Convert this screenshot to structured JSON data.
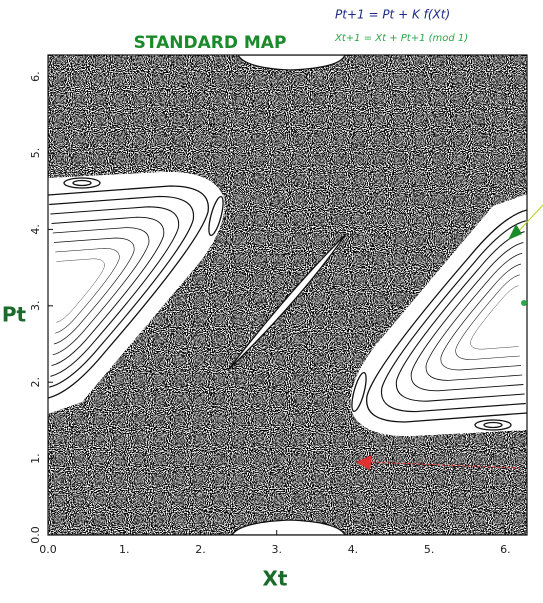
{
  "chart_data": {
    "type": "scatter",
    "title": "STANDARD MAP",
    "x_label": "Xt",
    "y_label": "Pt",
    "annotations": [
      "Pt+1 = Pt + K f(Xt)",
      "Xt+1 = Xt + Pt+1  (mod 1)"
    ],
    "xlim": [
      0,
      6.283
    ],
    "ylim": [
      0,
      6.283
    ],
    "xticks": [
      {
        "value": 0,
        "label": "0.0"
      },
      {
        "value": 1,
        "label": "1."
      },
      {
        "value": 2,
        "label": "2."
      },
      {
        "value": 3,
        "label": "3."
      },
      {
        "value": 4,
        "label": "4."
      },
      {
        "value": 5,
        "label": "5."
      },
      {
        "value": 6,
        "label": "6."
      }
    ],
    "yticks": [
      {
        "value": 0,
        "label": "0.0"
      },
      {
        "value": 1,
        "label": "1."
      },
      {
        "value": 2,
        "label": "2."
      },
      {
        "value": 3,
        "label": "3."
      },
      {
        "value": 4,
        "label": "4."
      },
      {
        "value": 5,
        "label": "5."
      },
      {
        "value": 6,
        "label": "6."
      }
    ]
  }
}
